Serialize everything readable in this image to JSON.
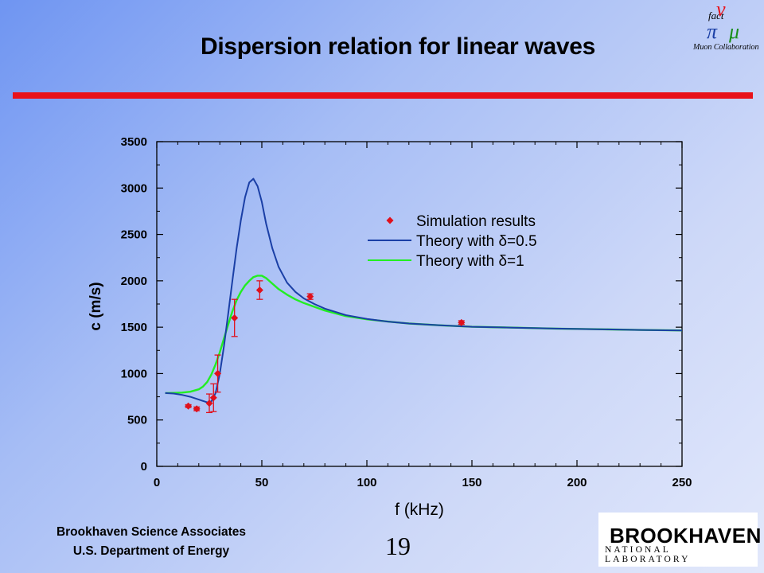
{
  "slide": {
    "title": "Dispersion relation for linear waves",
    "footer_line1": "Brookhaven Science Associates",
    "footer_line2": "U.S. Department of Energy",
    "page_number": "19",
    "bnl_name": "BROOKHAVEN",
    "bnl_sub": "NATIONAL LABORATORY",
    "nufact_logo_text": "Muon Collaboration",
    "title_rule_color": "#e8121a"
  },
  "chart_data": {
    "type": "scatter",
    "xlabel": "f (kHz)",
    "ylabel": "c (m/s)",
    "xlim": [
      0,
      250
    ],
    "ylim": [
      0,
      3500
    ],
    "x_ticks": [
      0,
      50,
      100,
      150,
      200,
      250
    ],
    "y_ticks": [
      0,
      500,
      1000,
      1500,
      2000,
      2500,
      3000,
      3500
    ],
    "grid": false,
    "legend_position": "top-right",
    "series": [
      {
        "name": "Simulation results",
        "kind": "points",
        "color": "#e0101c",
        "points": [
          {
            "x": 15,
            "y": 650,
            "err": 15
          },
          {
            "x": 19,
            "y": 620,
            "err": 20
          },
          {
            "x": 25,
            "y": 680,
            "err": 100
          },
          {
            "x": 27,
            "y": 740,
            "err": 150
          },
          {
            "x": 29,
            "y": 1000,
            "err": 200
          },
          {
            "x": 37,
            "y": 1600,
            "err": 200
          },
          {
            "x": 49,
            "y": 1900,
            "err": 100
          },
          {
            "x": 73,
            "y": 1830,
            "err": 30
          },
          {
            "x": 145,
            "y": 1550,
            "err": 20
          }
        ]
      },
      {
        "name": "Theory with δ=0.5",
        "kind": "line",
        "color": "#1a3fa6",
        "x": [
          4,
          8,
          12,
          16,
          20,
          24,
          26,
          28,
          30,
          32,
          34,
          36,
          38,
          40,
          42,
          44,
          46,
          48,
          50,
          52,
          55,
          58,
          62,
          66,
          70,
          75,
          80,
          90,
          100,
          110,
          120,
          135,
          150,
          170,
          190,
          210,
          230,
          250
        ],
        "y": [
          790,
          785,
          770,
          750,
          720,
          690,
          700,
          790,
          1000,
          1300,
          1650,
          2000,
          2350,
          2650,
          2900,
          3060,
          3100,
          3020,
          2850,
          2620,
          2350,
          2150,
          1980,
          1880,
          1810,
          1750,
          1700,
          1630,
          1590,
          1560,
          1540,
          1520,
          1505,
          1495,
          1485,
          1478,
          1470,
          1465
        ]
      },
      {
        "name": "Theory with δ=1",
        "kind": "line",
        "color": "#22ee22",
        "x": [
          4,
          8,
          12,
          16,
          20,
          22,
          24,
          26,
          28,
          30,
          32,
          34,
          36,
          38,
          40,
          42,
          44,
          46,
          48,
          50,
          52,
          55,
          58,
          62,
          66,
          70,
          75,
          80,
          90,
          100,
          110,
          120,
          135,
          150,
          170,
          190,
          210,
          230,
          250
        ],
        "y": [
          790,
          792,
          795,
          805,
          830,
          860,
          910,
          990,
          1100,
          1230,
          1380,
          1530,
          1670,
          1790,
          1880,
          1950,
          2000,
          2040,
          2055,
          2055,
          2030,
          1970,
          1910,
          1850,
          1800,
          1760,
          1720,
          1680,
          1620,
          1585,
          1560,
          1540,
          1520,
          1505,
          1495,
          1485,
          1478,
          1470,
          1465
        ]
      }
    ]
  }
}
